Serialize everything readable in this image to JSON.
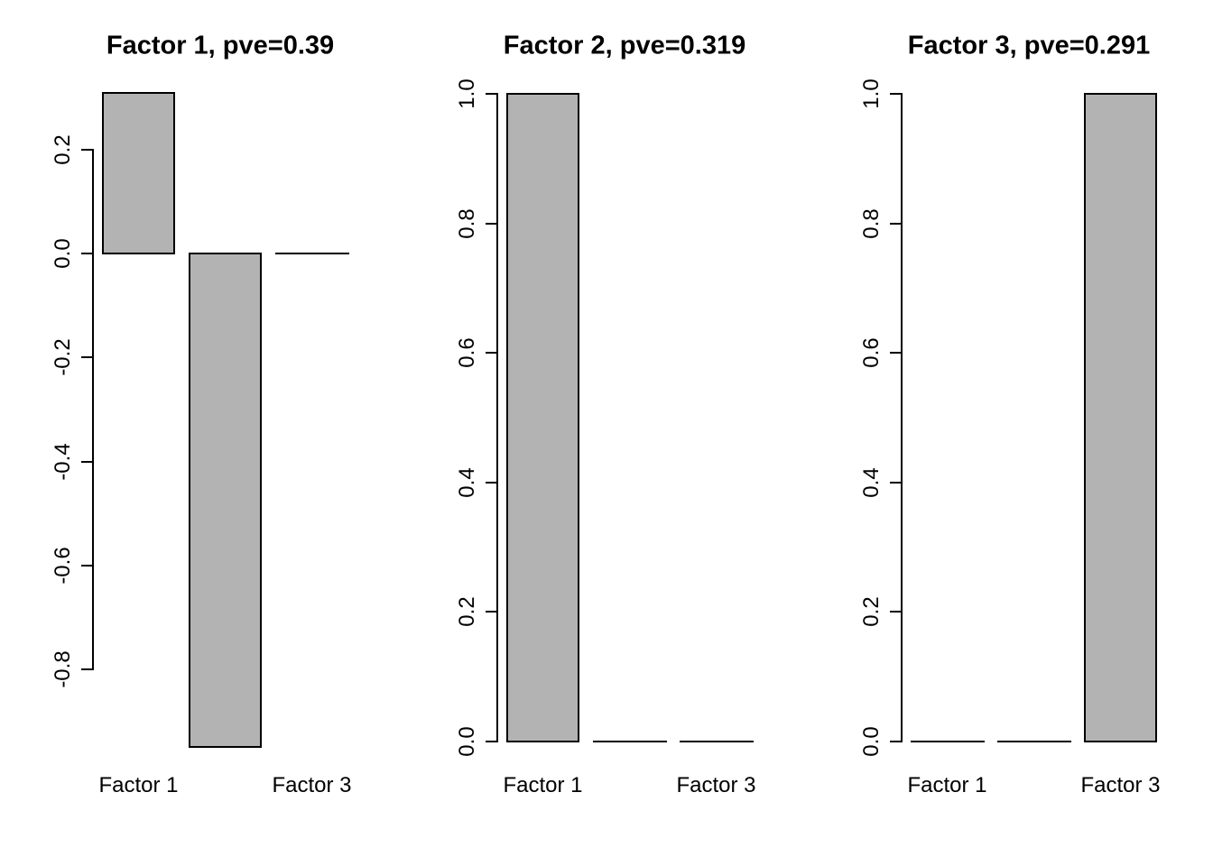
{
  "figure": {
    "background": "#ffffff",
    "bar_fill": "#B3B3B3",
    "bar_border": "#000000",
    "text_color": "#000000"
  },
  "chart_data": [
    {
      "type": "bar",
      "title": "Factor 1, pve=0.39",
      "x_tick_labels": [
        "Factor 1",
        "",
        "Factor 3"
      ],
      "values": [
        0.31,
        -0.95,
        0
      ],
      "ylim": [
        -0.95,
        0.31
      ],
      "grid": false,
      "legend": false,
      "y_ticks": [
        {
          "label": "0.2",
          "value": 0.2
        },
        {
          "label": "0.0",
          "value": 0.0
        },
        {
          "label": "-0.2",
          "value": -0.2
        },
        {
          "label": "-0.4",
          "value": -0.4
        },
        {
          "label": "-0.6",
          "value": -0.6
        },
        {
          "label": "-0.8",
          "value": -0.8
        }
      ]
    },
    {
      "type": "bar",
      "title": "Factor 2, pve=0.319",
      "x_tick_labels": [
        "Factor 1",
        "",
        "Factor 3"
      ],
      "values": [
        1.0,
        0,
        0
      ],
      "ylim": [
        0,
        1
      ],
      "grid": false,
      "legend": false,
      "y_ticks": [
        {
          "label": "1.0",
          "value": 1.0
        },
        {
          "label": "0.8",
          "value": 0.8
        },
        {
          "label": "0.6",
          "value": 0.6
        },
        {
          "label": "0.4",
          "value": 0.4
        },
        {
          "label": "0.2",
          "value": 0.2
        },
        {
          "label": "0.0",
          "value": 0.0
        }
      ]
    },
    {
      "type": "bar",
      "title": "Factor 3, pve=0.291",
      "x_tick_labels": [
        "Factor 1",
        "",
        "Factor 3"
      ],
      "values": [
        0,
        0,
        1.0
      ],
      "ylim": [
        0,
        1
      ],
      "grid": false,
      "legend": false,
      "y_ticks": [
        {
          "label": "1.0",
          "value": 1.0
        },
        {
          "label": "0.8",
          "value": 0.8
        },
        {
          "label": "0.6",
          "value": 0.6
        },
        {
          "label": "0.4",
          "value": 0.4
        },
        {
          "label": "0.2",
          "value": 0.2
        },
        {
          "label": "0.0",
          "value": 0.0
        }
      ]
    }
  ]
}
